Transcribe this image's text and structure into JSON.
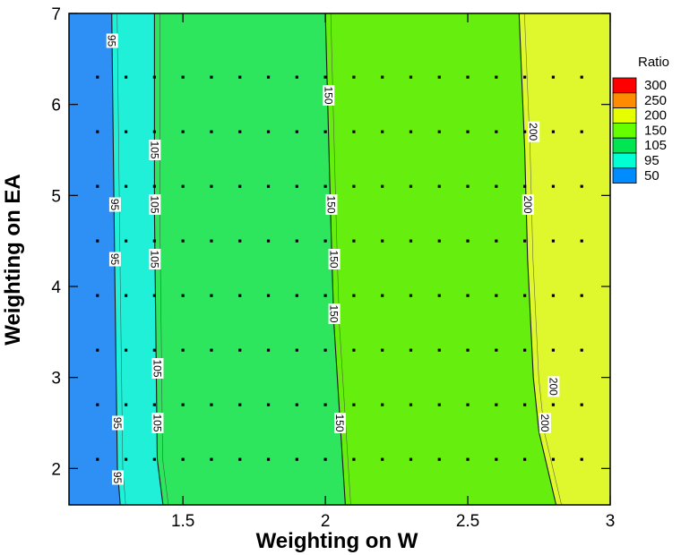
{
  "chart_data": {
    "type": "heatmap",
    "title": "",
    "xlabel": "Weighting on W",
    "ylabel": "Weighting on EA",
    "xlim": [
      1.1,
      3.0
    ],
    "ylim": [
      1.6,
      7.0
    ],
    "x_ticks": [
      "1.5",
      "2",
      "2.5",
      "3"
    ],
    "y_ticks": [
      "2",
      "3",
      "4",
      "5",
      "6",
      "7"
    ],
    "legend": {
      "title": "Ratio",
      "placement": "right",
      "levels": [
        {
          "label": "300",
          "color": "#ff0000"
        },
        {
          "label": "250",
          "color": "#ff8c00"
        },
        {
          "label": "200",
          "color": "#e6ff00"
        },
        {
          "label": "150",
          "color": "#66ff00"
        },
        {
          "label": "105",
          "color": "#00e650"
        },
        {
          "label": "95",
          "color": "#00ffd2"
        },
        {
          "label": "50",
          "color": "#008cff"
        }
      ]
    },
    "region_colors": [
      "#2e8ff5",
      "#1ff0d7",
      "#2ee65e",
      "#66ef0e",
      "#dff82e"
    ],
    "contours": [
      {
        "level": "95",
        "x_at_y": [
          [
            1.6,
            1.28
          ],
          [
            2.0,
            1.27
          ],
          [
            4.3,
            1.26
          ],
          [
            7.0,
            1.25
          ]
        ],
        "labels": [
          [
            1.27,
            1.9
          ],
          [
            1.27,
            2.5
          ],
          [
            1.26,
            4.3
          ],
          [
            1.26,
            4.9
          ],
          [
            1.25,
            6.7
          ]
        ]
      },
      {
        "level": "105",
        "x_at_y": [
          [
            1.6,
            1.43
          ],
          [
            2.1,
            1.41
          ],
          [
            4.8,
            1.4
          ],
          [
            7.0,
            1.4
          ]
        ],
        "labels": [
          [
            1.41,
            2.5
          ],
          [
            1.41,
            3.1
          ],
          [
            1.4,
            4.3
          ],
          [
            1.4,
            4.9
          ],
          [
            1.4,
            5.5
          ]
        ]
      },
      {
        "level": "150",
        "x_at_y": [
          [
            1.6,
            2.07
          ],
          [
            2.6,
            2.05
          ],
          [
            3.6,
            2.03
          ],
          [
            4.6,
            2.02
          ],
          [
            7.0,
            2.0
          ]
        ],
        "labels": [
          [
            2.05,
            2.5
          ],
          [
            2.03,
            3.7
          ],
          [
            2.03,
            4.3
          ],
          [
            2.02,
            4.9
          ],
          [
            2.01,
            6.1
          ]
        ]
      },
      {
        "level": "200",
        "x_at_y": [
          [
            1.6,
            2.81
          ],
          [
            2.4,
            2.75
          ],
          [
            3.0,
            2.73
          ],
          [
            4.3,
            2.71
          ],
          [
            5.5,
            2.7
          ],
          [
            7.0,
            2.68
          ]
        ],
        "labels": [
          [
            2.77,
            2.5
          ],
          [
            2.8,
            2.9
          ],
          [
            2.71,
            4.9
          ],
          [
            2.73,
            5.7
          ]
        ]
      }
    ],
    "samples": {
      "x": [
        1.2,
        1.3,
        1.4,
        1.5,
        1.6,
        1.7,
        1.8,
        1.9,
        2.0,
        2.1,
        2.2,
        2.3,
        2.4,
        2.5,
        2.6,
        2.7,
        2.8,
        2.9
      ],
      "y": [
        2.1,
        2.7,
        3.3,
        3.9,
        4.5,
        5.1,
        5.7,
        6.3
      ]
    }
  }
}
